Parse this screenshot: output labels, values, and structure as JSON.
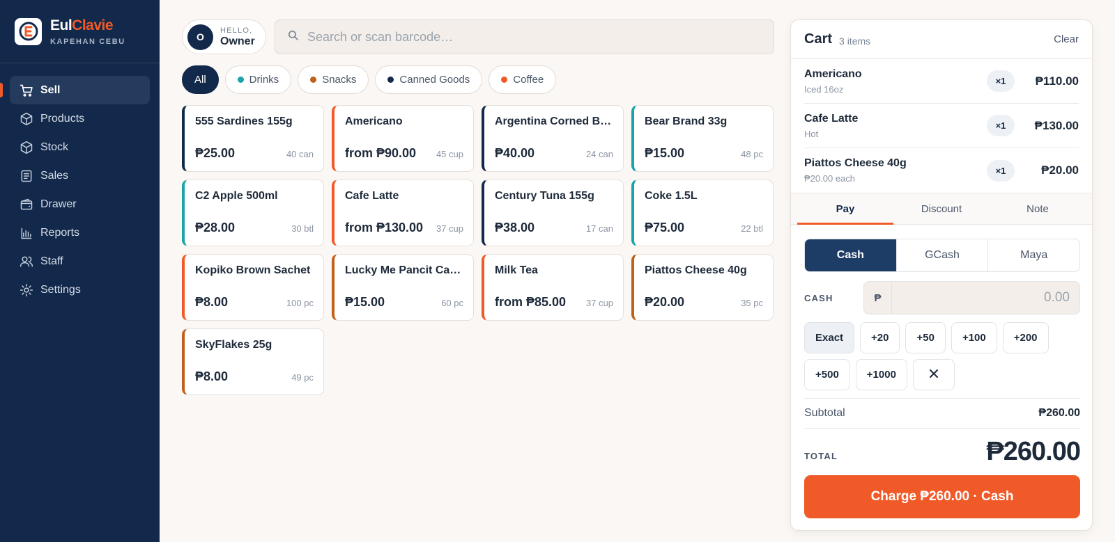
{
  "brand": {
    "name_part1": "Eul",
    "name_part2": "Clavie",
    "subtitle": "KAPEHAN CEBU",
    "logo_icon": "store-logo-icon"
  },
  "nav": {
    "items": [
      {
        "label": "Sell",
        "icon": "cart-icon",
        "active": true
      },
      {
        "label": "Products",
        "icon": "box-icon"
      },
      {
        "label": "Stock",
        "icon": "box-icon"
      },
      {
        "label": "Sales",
        "icon": "receipt-icon"
      },
      {
        "label": "Drawer",
        "icon": "wallet-icon"
      },
      {
        "label": "Reports",
        "icon": "bar-chart-icon"
      },
      {
        "label": "Staff",
        "icon": "users-icon"
      },
      {
        "label": "Settings",
        "icon": "gear-icon"
      }
    ]
  },
  "header": {
    "avatar_initial": "O",
    "greeting": "HELLO,",
    "user_name": "Owner",
    "search_placeholder": "Search or scan barcode…"
  },
  "categories": [
    {
      "label": "All",
      "active": true
    },
    {
      "label": "Drinks",
      "color": "#1aa3a8"
    },
    {
      "label": "Snacks",
      "color": "#c0601a"
    },
    {
      "label": "Canned Goods",
      "color": "#13294b"
    },
    {
      "label": "Coffee",
      "color": "#f05a28"
    }
  ],
  "products": [
    {
      "name": "555 Sardines 155g",
      "price": "₱25.00",
      "stock": "40 can",
      "color": "#13294b"
    },
    {
      "name": "Americano",
      "price": "from ₱90.00",
      "stock": "45 cup",
      "color": "#f05a28"
    },
    {
      "name": "Argentina Corned Be…",
      "price": "₱40.00",
      "stock": "24 can",
      "color": "#13294b"
    },
    {
      "name": "Bear Brand 33g",
      "price": "₱15.00",
      "stock": "48 pc",
      "color": "#1aa3a8"
    },
    {
      "name": "C2 Apple 500ml",
      "price": "₱28.00",
      "stock": "30 btl",
      "color": "#1aa3a8"
    },
    {
      "name": "Cafe Latte",
      "price": "from ₱130.00",
      "stock": "37 cup",
      "color": "#f05a28"
    },
    {
      "name": "Century Tuna 155g",
      "price": "₱38.00",
      "stock": "17 can",
      "color": "#13294b"
    },
    {
      "name": "Coke 1.5L",
      "price": "₱75.00",
      "stock": "22 btl",
      "color": "#1aa3a8"
    },
    {
      "name": "Kopiko Brown Sachet",
      "price": "₱8.00",
      "stock": "100 pc",
      "color": "#f05a28"
    },
    {
      "name": "Lucky Me Pancit Can…",
      "price": "₱15.00",
      "stock": "60 pc",
      "color": "#c0601a"
    },
    {
      "name": "Milk Tea",
      "price": "from ₱85.00",
      "stock": "37 cup",
      "color": "#f05a28"
    },
    {
      "name": "Piattos Cheese 40g",
      "price": "₱20.00",
      "stock": "35 pc",
      "color": "#c0601a"
    },
    {
      "name": "SkyFlakes 25g",
      "price": "₱8.00",
      "stock": "49 pc",
      "color": "#c0601a"
    }
  ],
  "cart": {
    "title": "Cart",
    "count": "3 items",
    "clear_label": "Clear",
    "lines": [
      {
        "name": "Americano",
        "sub": "Iced 16oz",
        "qty": "×1",
        "total": "₱110.00"
      },
      {
        "name": "Cafe Latte",
        "sub": "Hot",
        "qty": "×1",
        "total": "₱130.00"
      },
      {
        "name": "Piattos Cheese 40g",
        "sub": "₱20.00 each",
        "qty": "×1",
        "total": "₱20.00"
      }
    ],
    "tabs": [
      "Pay",
      "Discount",
      "Note"
    ],
    "active_tab": "Pay",
    "methods": [
      "Cash",
      "GCash",
      "Maya"
    ],
    "active_method": "Cash",
    "cash_label": "CASH",
    "currency_symbol": "₱",
    "cash_placeholder": "0.00",
    "quick_amounts": [
      "Exact",
      "+20",
      "+50",
      "+100",
      "+200",
      "+500",
      "+1000"
    ],
    "subtotal_label": "Subtotal",
    "subtotal_value": "₱260.00",
    "total_label": "TOTAL",
    "total_value": "₱260.00",
    "charge_label": "Charge ₱260.00 · Cash"
  },
  "colors": {
    "navy": "#13294b",
    "accent": "#f05a28",
    "teal": "#1aa3a8",
    "brown": "#c0601a"
  }
}
